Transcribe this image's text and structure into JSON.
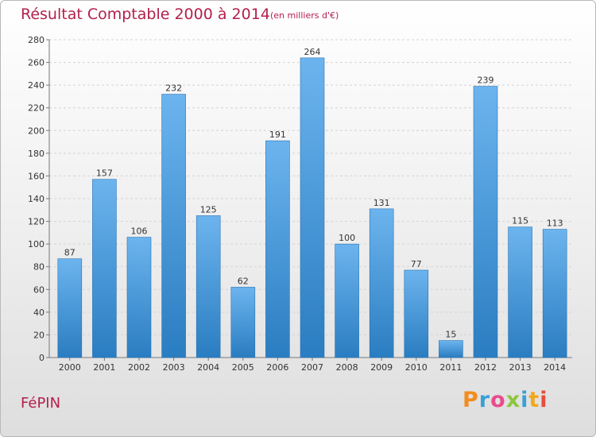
{
  "chart_data": {
    "type": "bar",
    "title": "Résultat Comptable 2000 à 2014",
    "subtitle": "(en milliers d'€)",
    "categories": [
      "2000",
      "2001",
      "2002",
      "2003",
      "2004",
      "2005",
      "2006",
      "2007",
      "2008",
      "2009",
      "2010",
      "2011",
      "2012",
      "2013",
      "2014"
    ],
    "values": [
      87,
      157,
      106,
      232,
      125,
      62,
      191,
      264,
      100,
      131,
      77,
      15,
      239,
      115,
      113
    ],
    "data_labels": [
      "87",
      "157",
      "106",
      "232",
      "125",
      "62",
      "191",
      "264",
      "100",
      "131",
      "77",
      "15",
      "239",
      "115",
      "113"
    ],
    "xlabel": "",
    "ylabel": "",
    "ylim": [
      0,
      280
    ],
    "yticks": [
      0,
      20,
      40,
      60,
      80,
      100,
      120,
      140,
      160,
      180,
      200,
      220,
      240,
      260,
      280
    ],
    "grid": true,
    "legend": "none"
  },
  "footer": {
    "commune": "FéPIN",
    "logo": "Proxiti"
  },
  "colors": {
    "bar_light": "#6cb4ee",
    "bar_dark": "#2a7dc1",
    "title": "#b3204c",
    "logo_letters": [
      "#f28c1c",
      "#3aa0d8",
      "#e84c8b",
      "#8cc63e",
      "#3aa0d8",
      "#f2a81c",
      "#e84c3a"
    ]
  }
}
